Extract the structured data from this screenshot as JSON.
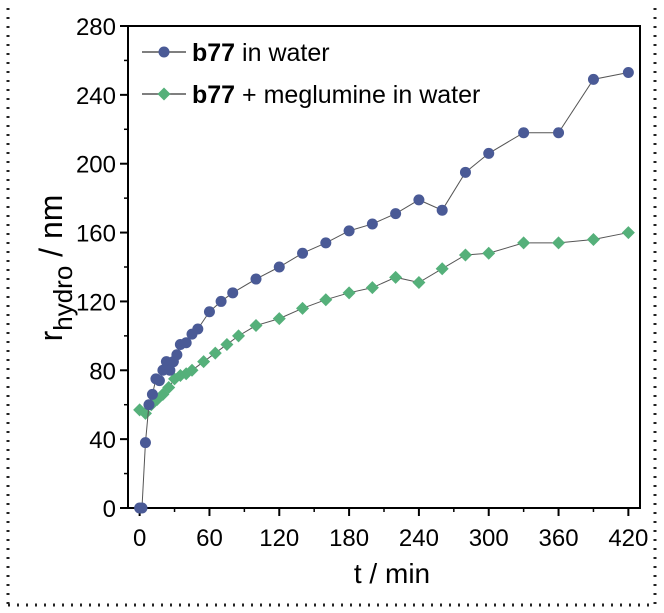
{
  "chart_data": {
    "type": "line",
    "xlabel": "t / min",
    "ylabel_main": "r",
    "ylabel_sub": "hydro",
    "ylabel_unit": " / nm",
    "xlim": [
      -10,
      430
    ],
    "ylim": [
      0,
      280
    ],
    "xticks": [
      0,
      60,
      120,
      180,
      240,
      300,
      360,
      420
    ],
    "yticks": [
      0,
      40,
      80,
      120,
      160,
      200,
      240,
      280
    ],
    "xtick_labels": [
      "0",
      "60",
      "120",
      "180",
      "240",
      "300",
      "360",
      "420"
    ],
    "ytick_labels": [
      "0",
      "40",
      "80",
      "120",
      "160",
      "200",
      "240",
      "280"
    ],
    "legend_position": "top-left",
    "series": [
      {
        "legend_bold": "b77",
        "legend_rest": " in water",
        "color": "#4a5a96",
        "marker": "circle",
        "x": [
          0,
          2,
          5,
          8,
          11,
          14,
          17,
          20,
          23,
          26,
          29,
          32,
          35,
          40,
          45,
          50,
          60,
          70,
          80,
          100,
          120,
          140,
          160,
          180,
          200,
          220,
          240,
          260,
          280,
          300,
          330,
          360,
          390,
          420
        ],
        "y": [
          0,
          0,
          38,
          60,
          66,
          75,
          74,
          80,
          85,
          80,
          85,
          89,
          95,
          96,
          101,
          104,
          114,
          120,
          125,
          133,
          140,
          148,
          154,
          161,
          165,
          171,
          179,
          173,
          195,
          206,
          218,
          218,
          249,
          253
        ]
      },
      {
        "legend_bold": "b77",
        "legend_rest": " + meglumine in water",
        "color": "#55b07a",
        "marker": "diamond",
        "x": [
          0,
          5,
          10,
          15,
          20,
          25,
          30,
          35,
          40,
          45,
          55,
          65,
          75,
          85,
          100,
          120,
          140,
          160,
          180,
          200,
          220,
          240,
          260,
          280,
          300,
          330,
          360,
          390,
          420
        ],
        "y": [
          57,
          55,
          60,
          63,
          66,
          70,
          75,
          77,
          78,
          80,
          85,
          90,
          95,
          100,
          106,
          110,
          116,
          121,
          125,
          128,
          134,
          131,
          139,
          147,
          148,
          154,
          154,
          156,
          160
        ]
      }
    ]
  }
}
